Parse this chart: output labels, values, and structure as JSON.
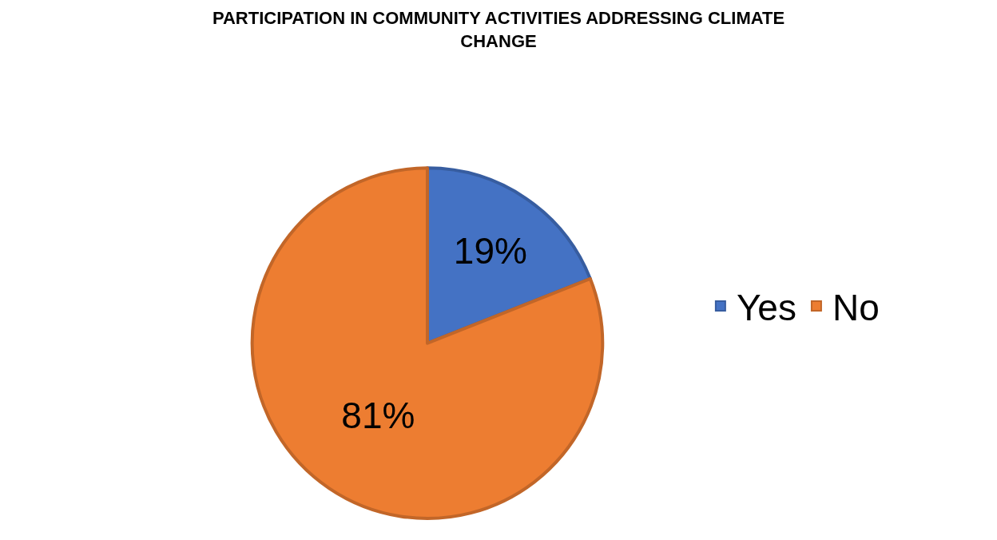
{
  "chart_data": {
    "type": "pie",
    "title": "PARTICIPATION IN COMMUNITY ACTIVITIES ADDRESSING CLIMATE CHANGE",
    "categories": [
      "Yes",
      "No"
    ],
    "values": [
      19,
      81
    ],
    "colors": [
      "#4472c4",
      "#ed7d31"
    ],
    "value_labels": [
      "19%",
      "81%"
    ],
    "legend": "right"
  }
}
